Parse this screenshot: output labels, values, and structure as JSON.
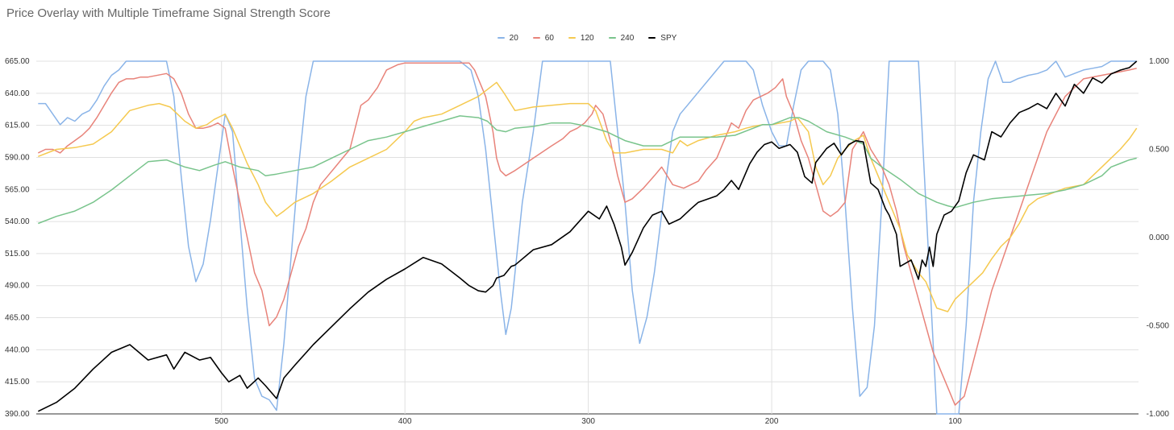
{
  "chart_data": {
    "type": "line",
    "title": "Price Overlay with Multiple Timeframe Signal Strength Score",
    "legend_position": "top",
    "grid": true,
    "x_axis": {
      "range": [
        601,
        0
      ],
      "direction": "descending",
      "ticks": [
        "500",
        "400",
        "300",
        "200",
        "100"
      ],
      "tick_values": [
        500,
        400,
        300,
        200,
        100
      ]
    },
    "y_left": {
      "range": [
        390,
        665
      ],
      "ticks": [
        "390.00",
        "415.00",
        "440.00",
        "465.00",
        "490.00",
        "515.00",
        "540.00",
        "565.00",
        "590.00",
        "615.00",
        "640.00",
        "665.00"
      ],
      "tick_values": [
        390,
        415,
        440,
        465,
        490,
        515,
        540,
        565,
        590,
        615,
        640,
        665
      ]
    },
    "y_right": {
      "range": [
        -1,
        1
      ],
      "ticks": [
        "-1.000",
        "-0.500",
        "0.000",
        "0.500",
        "1.000"
      ],
      "tick_values": [
        -1,
        -0.5,
        0,
        0.5,
        1
      ]
    },
    "series": [
      {
        "name": "20",
        "axis": "right",
        "color": "#8ab4e8",
        "x": [
          600,
          596,
          592,
          588,
          584,
          580,
          576,
          572,
          568,
          564,
          560,
          556,
          552,
          548,
          540,
          530,
          526,
          522,
          518,
          514,
          510,
          506,
          502,
          498,
          494,
          490,
          486,
          482,
          478,
          474,
          470,
          466,
          462,
          458,
          454,
          450,
          446,
          442,
          438,
          430,
          420,
          410,
          400,
          390,
          380,
          370,
          364,
          360,
          356,
          352,
          348,
          345,
          342,
          340,
          336,
          330,
          325,
          320,
          316,
          312,
          308,
          304,
          300,
          296,
          292,
          288,
          284,
          280,
          276,
          272,
          268,
          264,
          258,
          254,
          250,
          246,
          242,
          238,
          234,
          230,
          226,
          222,
          218,
          214,
          210,
          205,
          200,
          196,
          192,
          188,
          184,
          180,
          176,
          172,
          168,
          164,
          160,
          156,
          152,
          148,
          144,
          140,
          136,
          120,
          110,
          106,
          102,
          98,
          94,
          90,
          86,
          82,
          78,
          74,
          70,
          66,
          60,
          55,
          50,
          45,
          40,
          35,
          30,
          25,
          20,
          15,
          10,
          5,
          1
        ],
        "y": [
          0.76,
          0.76,
          0.7,
          0.64,
          0.68,
          0.66,
          0.7,
          0.72,
          0.78,
          0.86,
          0.92,
          0.95,
          1.0,
          1.0,
          1.0,
          1.0,
          0.8,
          0.35,
          -0.05,
          -0.25,
          -0.15,
          0.1,
          0.4,
          0.7,
          0.6,
          0.1,
          -0.4,
          -0.8,
          -0.9,
          -0.92,
          -0.98,
          -0.6,
          -0.1,
          0.4,
          0.8,
          1.0,
          1.0,
          1.0,
          1.0,
          1.0,
          1.0,
          1.0,
          1.0,
          1.0,
          1.0,
          1.0,
          0.95,
          0.8,
          0.5,
          0.1,
          -0.3,
          -0.55,
          -0.4,
          -0.2,
          0.2,
          0.6,
          1.0,
          1.0,
          1.0,
          1.0,
          1.0,
          1.0,
          1.0,
          1.0,
          1.0,
          1.0,
          0.6,
          0.2,
          -0.3,
          -0.6,
          -0.45,
          -0.2,
          0.3,
          0.6,
          0.7,
          0.75,
          0.8,
          0.85,
          0.9,
          0.95,
          1.0,
          1.0,
          1.0,
          1.0,
          0.95,
          0.75,
          0.6,
          0.52,
          0.52,
          0.75,
          0.95,
          1.0,
          1.0,
          1.0,
          0.95,
          0.7,
          0.2,
          -0.4,
          -0.9,
          -0.85,
          -0.5,
          0.2,
          1.0,
          1.0,
          -1.0,
          -1.0,
          -1.0,
          -1.0,
          -0.5,
          0.2,
          0.6,
          0.9,
          1.0,
          0.88,
          0.88,
          0.9,
          0.92,
          0.93,
          0.95,
          1.0,
          0.91,
          0.93,
          0.95,
          0.96,
          0.97,
          1.0,
          1.0,
          1.0,
          1.0
        ]
      },
      {
        "name": "60",
        "axis": "right",
        "color": "#e8837a",
        "x": [
          600,
          596,
          592,
          588,
          584,
          580,
          576,
          572,
          568,
          564,
          560,
          556,
          552,
          548,
          544,
          540,
          530,
          526,
          522,
          518,
          514,
          510,
          506,
          502,
          498,
          494,
          490,
          486,
          482,
          478,
          474,
          470,
          466,
          462,
          458,
          454,
          450,
          446,
          442,
          438,
          434,
          430,
          424,
          420,
          415,
          410,
          404,
          400,
          395,
          390,
          385,
          380,
          375,
          370,
          365,
          362,
          360,
          356,
          352,
          350,
          348,
          345,
          340,
          330,
          320,
          314,
          310,
          306,
          302,
          298,
          296,
          292,
          288,
          284,
          280,
          276,
          270,
          264,
          260,
          254,
          248,
          244,
          240,
          236,
          230,
          226,
          222,
          218,
          214,
          210,
          206,
          202,
          198,
          194,
          192,
          188,
          184,
          180,
          176,
          172,
          168,
          164,
          160,
          156,
          150,
          146,
          140,
          136,
          132,
          128,
          124,
          120,
          116,
          112,
          108,
          104,
          100,
          95,
          90,
          85,
          80,
          70,
          60,
          50,
          40,
          30,
          20,
          10,
          5,
          1
        ],
        "y": [
          0.48,
          0.5,
          0.5,
          0.48,
          0.52,
          0.55,
          0.58,
          0.62,
          0.68,
          0.75,
          0.82,
          0.88,
          0.9,
          0.9,
          0.91,
          0.91,
          0.93,
          0.9,
          0.82,
          0.7,
          0.62,
          0.62,
          0.63,
          0.65,
          0.62,
          0.4,
          0.2,
          0.0,
          -0.2,
          -0.3,
          -0.5,
          -0.45,
          -0.35,
          -0.2,
          -0.05,
          0.05,
          0.2,
          0.3,
          0.35,
          0.4,
          0.45,
          0.5,
          0.75,
          0.78,
          0.85,
          0.95,
          0.98,
          0.99,
          0.99,
          0.99,
          0.99,
          0.99,
          0.99,
          0.99,
          0.99,
          0.95,
          0.9,
          0.8,
          0.6,
          0.45,
          0.38,
          0.35,
          0.38,
          0.45,
          0.52,
          0.56,
          0.6,
          0.62,
          0.65,
          0.7,
          0.75,
          0.7,
          0.55,
          0.35,
          0.2,
          0.22,
          0.28,
          0.35,
          0.4,
          0.3,
          0.28,
          0.3,
          0.32,
          0.38,
          0.45,
          0.55,
          0.65,
          0.62,
          0.72,
          0.78,
          0.8,
          0.82,
          0.85,
          0.9,
          0.8,
          0.7,
          0.55,
          0.45,
          0.3,
          0.15,
          0.12,
          0.15,
          0.2,
          0.5,
          0.6,
          0.5,
          0.4,
          0.3,
          0.15,
          -0.05,
          -0.2,
          -0.35,
          -0.5,
          -0.65,
          -0.75,
          -0.85,
          -0.95,
          -0.9,
          -0.7,
          -0.5,
          -0.3,
          0.0,
          0.3,
          0.6,
          0.8,
          0.9,
          0.92,
          0.94,
          0.95,
          0.96
        ]
      },
      {
        "name": "120",
        "axis": "right",
        "color": "#f5c94f",
        "x": [
          600,
          590,
          580,
          570,
          560,
          550,
          540,
          534,
          528,
          524,
          520,
          514,
          508,
          504,
          498,
          494,
          490,
          486,
          480,
          476,
          470,
          466,
          460,
          450,
          440,
          430,
          420,
          410,
          400,
          395,
          390,
          380,
          370,
          360,
          350,
          346,
          340,
          330,
          320,
          310,
          300,
          296,
          290,
          286,
          280,
          270,
          260,
          254,
          250,
          246,
          240,
          230,
          220,
          214,
          210,
          205,
          200,
          190,
          186,
          180,
          176,
          172,
          168,
          164,
          160,
          155,
          150,
          146,
          140,
          136,
          130,
          126,
          120,
          116,
          110,
          104,
          100,
          95,
          90,
          85,
          80,
          75,
          70,
          65,
          60,
          55,
          50,
          45,
          40,
          35,
          30,
          25,
          20,
          15,
          10,
          5,
          1
        ],
        "y": [
          0.46,
          0.5,
          0.51,
          0.53,
          0.6,
          0.72,
          0.75,
          0.76,
          0.74,
          0.7,
          0.66,
          0.62,
          0.64,
          0.67,
          0.7,
          0.62,
          0.52,
          0.42,
          0.3,
          0.2,
          0.12,
          0.15,
          0.2,
          0.25,
          0.32,
          0.4,
          0.45,
          0.5,
          0.6,
          0.66,
          0.68,
          0.7,
          0.75,
          0.8,
          0.88,
          0.82,
          0.72,
          0.74,
          0.75,
          0.76,
          0.76,
          0.72,
          0.55,
          0.48,
          0.48,
          0.5,
          0.5,
          0.48,
          0.55,
          0.52,
          0.55,
          0.58,
          0.6,
          0.62,
          0.63,
          0.64,
          0.64,
          0.66,
          0.68,
          0.6,
          0.4,
          0.3,
          0.35,
          0.45,
          0.5,
          0.55,
          0.58,
          0.45,
          0.3,
          0.2,
          0.05,
          -0.1,
          -0.2,
          -0.25,
          -0.4,
          -0.42,
          -0.35,
          -0.3,
          -0.25,
          -0.2,
          -0.12,
          -0.05,
          0.0,
          0.08,
          0.18,
          0.22,
          0.24,
          0.26,
          0.28,
          0.29,
          0.3,
          0.35,
          0.4,
          0.45,
          0.5,
          0.56,
          0.62
        ]
      },
      {
        "name": "240",
        "axis": "right",
        "color": "#79c48c",
        "x": [
          600,
          590,
          580,
          570,
          560,
          550,
          540,
          530,
          520,
          512,
          504,
          498,
          490,
          480,
          476,
          470,
          460,
          450,
          440,
          430,
          420,
          410,
          400,
          390,
          380,
          370,
          360,
          355,
          350,
          345,
          340,
          330,
          320,
          310,
          300,
          290,
          280,
          270,
          260,
          250,
          240,
          230,
          220,
          210,
          205,
          200,
          190,
          185,
          180,
          170,
          160,
          150,
          146,
          140,
          130,
          120,
          110,
          104,
          100,
          90,
          80,
          70,
          60,
          50,
          40,
          30,
          20,
          15,
          10,
          5,
          1
        ],
        "y": [
          0.08,
          0.12,
          0.15,
          0.2,
          0.27,
          0.35,
          0.43,
          0.44,
          0.4,
          0.38,
          0.41,
          0.43,
          0.4,
          0.38,
          0.35,
          0.36,
          0.38,
          0.4,
          0.45,
          0.5,
          0.55,
          0.57,
          0.6,
          0.63,
          0.66,
          0.69,
          0.68,
          0.66,
          0.61,
          0.6,
          0.62,
          0.63,
          0.65,
          0.65,
          0.63,
          0.6,
          0.55,
          0.52,
          0.52,
          0.57,
          0.57,
          0.57,
          0.58,
          0.62,
          0.64,
          0.64,
          0.68,
          0.68,
          0.66,
          0.6,
          0.57,
          0.53,
          0.45,
          0.4,
          0.33,
          0.25,
          0.2,
          0.18,
          0.17,
          0.2,
          0.22,
          0.23,
          0.24,
          0.25,
          0.27,
          0.3,
          0.35,
          0.4,
          0.42,
          0.44,
          0.45
        ]
      },
      {
        "name": "SPY",
        "axis": "left",
        "color": "#000000",
        "x": [
          600,
          590,
          580,
          570,
          560,
          550,
          540,
          530,
          526,
          520,
          512,
          506,
          500,
          496,
          490,
          486,
          480,
          476,
          470,
          466,
          460,
          450,
          440,
          430,
          420,
          410,
          400,
          390,
          380,
          370,
          365,
          360,
          356,
          352,
          350,
          346,
          342,
          340,
          330,
          320,
          310,
          300,
          294,
          290,
          286,
          282,
          280,
          276,
          270,
          265,
          260,
          256,
          250,
          244,
          240,
          230,
          226,
          222,
          218,
          212,
          208,
          204,
          200,
          196,
          190,
          186,
          182,
          178,
          176,
          170,
          166,
          162,
          158,
          154,
          150,
          146,
          142,
          138,
          136,
          132,
          130,
          124,
          120,
          118,
          116,
          114,
          112,
          110,
          106,
          102,
          98,
          94,
          90,
          84,
          80,
          75,
          70,
          65,
          60,
          55,
          50,
          45,
          40,
          35,
          30,
          25,
          20,
          15,
          10,
          5,
          1
        ],
        "y": [
          392,
          399,
          410,
          425,
          438,
          444,
          432,
          436,
          425,
          438,
          432,
          434,
          422,
          415,
          420,
          410,
          418,
          412,
          402,
          418,
          428,
          444,
          458,
          472,
          485,
          495,
          503,
          512,
          507,
          496,
          490,
          486,
          485,
          490,
          496,
          498,
          505,
          506,
          518,
          522,
          532,
          548,
          542,
          552,
          538,
          520,
          506,
          516,
          535,
          545,
          548,
          538,
          542,
          550,
          555,
          560,
          565,
          572,
          565,
          585,
          594,
          600,
          602,
          597,
          600,
          594,
          575,
          570,
          586,
          597,
          601,
          592,
          600,
          603,
          602,
          570,
          565,
          550,
          545,
          530,
          505,
          510,
          495,
          510,
          505,
          520,
          505,
          530,
          545,
          548,
          556,
          578,
          592,
          588,
          610,
          606,
          617,
          625,
          628,
          632,
          628,
          640,
          630,
          647,
          640,
          652,
          648,
          655,
          658,
          660,
          665
        ]
      }
    ]
  }
}
